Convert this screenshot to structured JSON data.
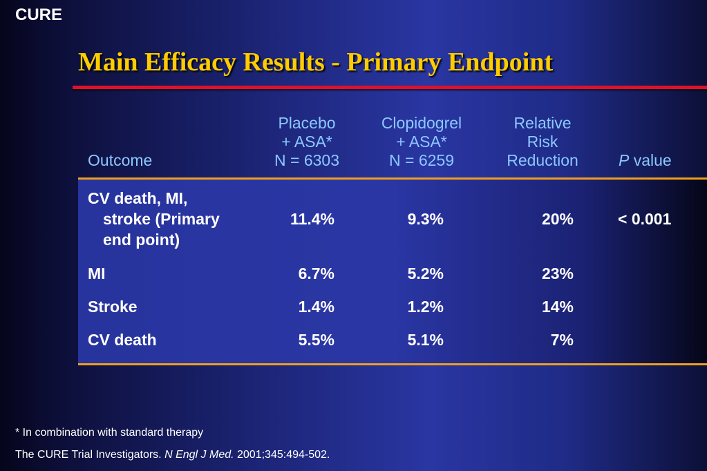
{
  "corner_label": "CURE",
  "title": "Main Efficacy Results - Primary Endpoint",
  "header": {
    "outcome": "Outcome",
    "placebo": [
      "Placebo",
      "+ ASA*",
      "N = 6303"
    ],
    "clopidogrel": [
      "Clopidogrel",
      "+ ASA*",
      "N = 6259"
    ],
    "rrr": [
      "Relative",
      "Risk",
      "Reduction"
    ],
    "p_italic": "P",
    "p_rest": " value"
  },
  "rows": [
    {
      "outcome_lines": [
        "CV death, MI,",
        "stroke (Primary",
        "end point)"
      ],
      "placebo": "11.4%",
      "clopidogrel": "9.3%",
      "rrr": "20%",
      "p": "< 0.001"
    },
    {
      "outcome": "MI",
      "placebo": "6.7%",
      "clopidogrel": "5.2%",
      "rrr": "23%",
      "p": ""
    },
    {
      "outcome": "Stroke",
      "placebo": "1.4%",
      "clopidogrel": "1.2%",
      "rrr": "14%",
      "p": ""
    },
    {
      "outcome": "CV death",
      "placebo": "5.5%",
      "clopidogrel": "5.1%",
      "rrr": "7%",
      "p": ""
    }
  ],
  "footnotes": {
    "asterisk": "* In combination with standard therapy",
    "ref_prefix": "The CURE Trial Investigators. ",
    "ref_journal": "N Engl J Med.",
    "ref_suffix": " 2001;345:494-502."
  },
  "colors": {
    "title": "#ffcc00",
    "header_text": "#8cc8ff",
    "title_rule": "#e0102a",
    "table_rules": "#f0a020"
  }
}
